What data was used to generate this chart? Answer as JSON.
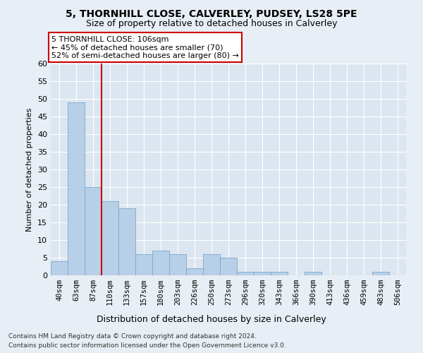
{
  "title1": "5, THORNHILL CLOSE, CALVERLEY, PUDSEY, LS28 5PE",
  "title2": "Size of property relative to detached houses in Calverley",
  "xlabel": "Distribution of detached houses by size in Calverley",
  "ylabel": "Number of detached properties",
  "categories": [
    "40sqm",
    "63sqm",
    "87sqm",
    "110sqm",
    "133sqm",
    "157sqm",
    "180sqm",
    "203sqm",
    "226sqm",
    "250sqm",
    "273sqm",
    "296sqm",
    "320sqm",
    "343sqm",
    "366sqm",
    "390sqm",
    "413sqm",
    "436sqm",
    "459sqm",
    "483sqm",
    "506sqm"
  ],
  "values": [
    4,
    49,
    25,
    21,
    19,
    6,
    7,
    6,
    2,
    6,
    5,
    1,
    1,
    1,
    0,
    1,
    0,
    0,
    0,
    1,
    0
  ],
  "bar_color": "#b8cfe8",
  "bar_edge_color": "#7aa8cc",
  "vline_x": 2.5,
  "vline_color": "#cc0000",
  "ylim": [
    0,
    60
  ],
  "yticks": [
    0,
    5,
    10,
    15,
    20,
    25,
    30,
    35,
    40,
    45,
    50,
    55,
    60
  ],
  "annotation_text": "5 THORNHILL CLOSE: 106sqm\n← 45% of detached houses are smaller (70)\n52% of semi-detached houses are larger (80) →",
  "annotation_box_color": "#ffffff",
  "annotation_box_edge": "#cc0000",
  "footer1": "Contains HM Land Registry data © Crown copyright and database right 2024.",
  "footer2": "Contains public sector information licensed under the Open Government Licence v3.0.",
  "bg_color": "#e8eef5",
  "plot_bg_color": "#dce6f0",
  "title1_fontsize": 10,
  "title2_fontsize": 9
}
